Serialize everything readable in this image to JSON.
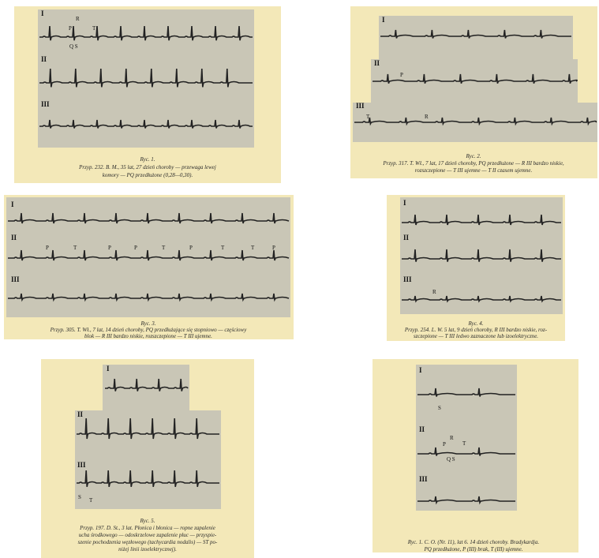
{
  "figures": [
    {
      "leads": [
        "I",
        "II",
        "III"
      ],
      "annotations": [
        "P",
        "R",
        "T",
        "Q S"
      ],
      "caption": [
        "Ryc. 1.",
        "Przyp. 232. B. M., 35 lat, 27 dzień choroby — przewaga lewej",
        "komory — PQ przedłużone (0,28—0,30)."
      ]
    },
    {
      "leads": [
        "I",
        "II",
        "III"
      ],
      "annotations": [
        "P",
        "T",
        "R"
      ],
      "caption": [
        "Ryc. 2.",
        "Przyp. 317. T. Wł., 7 lat, 17 dzień choroby, PQ przedłużone — R III bardzo niskie,",
        "rozszczepione — T III ujemne — T II czasem ujemne."
      ]
    },
    {
      "leads": [
        "I",
        "II",
        "III"
      ],
      "annotations": [
        "P",
        "T",
        "P",
        "P",
        "T",
        "P",
        "T",
        "T",
        "P"
      ],
      "caption": [
        "Ryc. 3.",
        "Przyp. 305. T. Wł., 7 lat, 14 dzień choroby, PQ przedłużające się stopniowo — częściowy",
        "blok — R III bardzo niskie, rozszczepione — T III ujemne."
      ]
    },
    {
      "leads": [
        "I",
        "II",
        "III"
      ],
      "annotations": [
        "R"
      ],
      "caption": [
        "Ryc. 4.",
        "Przyp. 254. L. W. 5 lat, 9 dzień choroby, R III bardzo niskie, roz-",
        "szczepione — T III ledwo zaznaczone lub izoelektryczne."
      ]
    },
    {
      "leads": [
        "I",
        "II",
        "III"
      ],
      "annotations": [
        "S",
        "T"
      ],
      "caption": [
        "Ryc. 5.",
        "Przyp. 197. D. St., 3 lat. Płonica i błonica — ropne zapalenie",
        "ucha środkowego — odoskrzelowe zapalenie płuc — przyspie-",
        "szenie pochodzenia węzłowego (tachycardia nodalis) — ST po-",
        "niżej linii izoelektrycznej)."
      ]
    },
    {
      "leads": [
        "I",
        "II",
        "III"
      ],
      "annotations": [
        "S",
        "P",
        "R",
        "T",
        "Q S"
      ],
      "caption": [
        "Ryc. 1. C. O. (Nr. 11), lat 6. 14 dzień choroby. Bradykardja.",
        "PQ przedłużone, P (III) brak, T (III) ujemne."
      ]
    }
  ]
}
